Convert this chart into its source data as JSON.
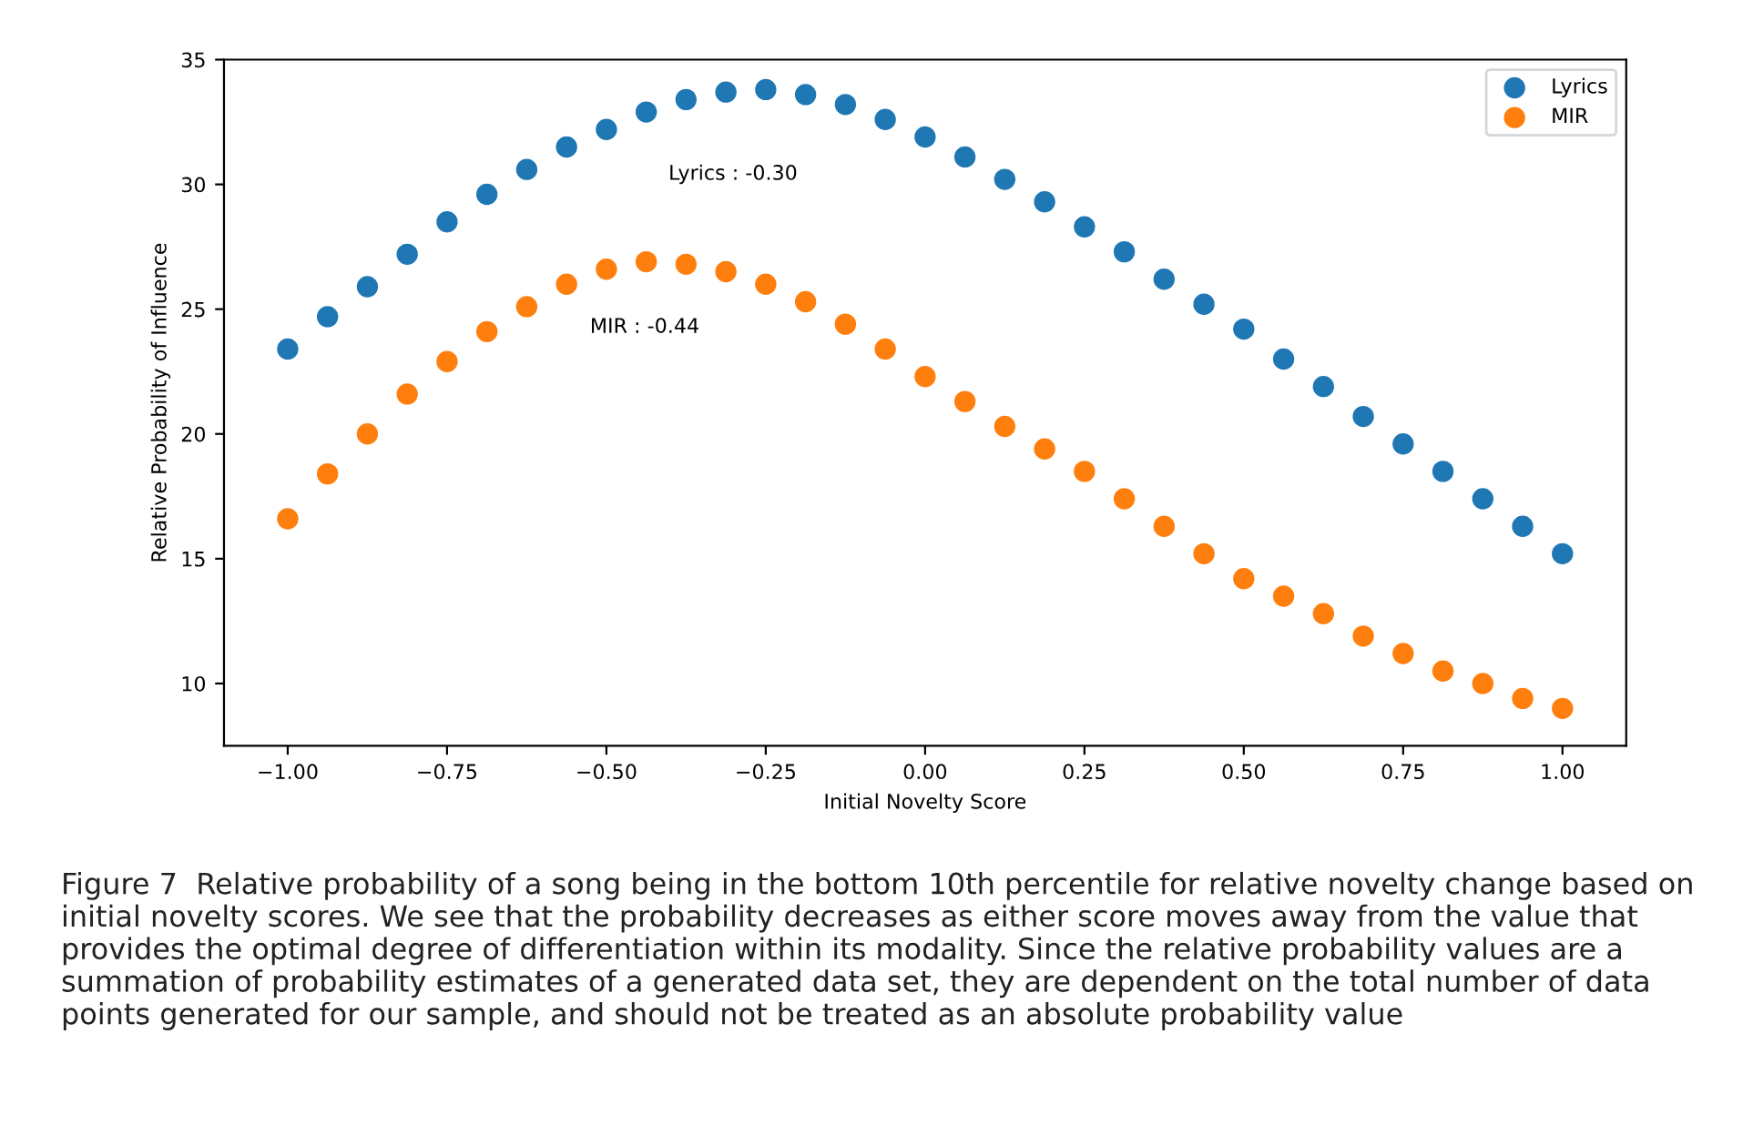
{
  "chart_data": {
    "type": "scatter",
    "xlabel": "Initial Novelty Score",
    "ylabel": "Relative Probability of Influence",
    "xlim": [
      -1.1,
      1.1
    ],
    "ylim": [
      7.5,
      35
    ],
    "xticks": [
      {
        "value": -1,
        "label": "−1.00"
      },
      {
        "value": -0.75,
        "label": "−0.75"
      },
      {
        "value": -0.5,
        "label": "−0.50"
      },
      {
        "value": -0.25,
        "label": "−0.25"
      },
      {
        "value": 0,
        "label": "0.00"
      },
      {
        "value": 0.25,
        "label": "0.25"
      },
      {
        "value": 0.5,
        "label": "0.50"
      },
      {
        "value": 0.75,
        "label": "0.75"
      },
      {
        "value": 1,
        "label": "1.00"
      }
    ],
    "yticks": [
      10,
      15,
      20,
      25,
      30,
      35
    ],
    "grid": false,
    "legend": "top right",
    "marker": "circle",
    "series": [
      {
        "name": "Lyrics",
        "color": "#1f77b4",
        "x": [
          -1,
          -0.9375,
          -0.875,
          -0.8125,
          -0.75,
          -0.6875,
          -0.625,
          -0.5625,
          -0.5,
          -0.4375,
          -0.375,
          -0.3125,
          -0.25,
          -0.1875,
          -0.125,
          -0.0625,
          0,
          0.0625,
          0.125,
          0.1875,
          0.25,
          0.3125,
          0.375,
          0.4375,
          0.5,
          0.5625,
          0.625,
          0.6875,
          0.75,
          0.8125,
          0.875,
          0.9375,
          1
        ],
        "values": [
          23.4,
          24.7,
          25.9,
          27.2,
          28.5,
          29.6,
          30.6,
          31.5,
          32.2,
          32.9,
          33.4,
          33.7,
          33.8,
          33.6,
          33.2,
          32.6,
          31.9,
          31.1,
          30.2,
          29.3,
          28.3,
          27.3,
          26.2,
          25.2,
          24.2,
          23.0,
          21.9,
          20.7,
          19.6,
          18.5,
          17.4,
          16.3,
          15.2
        ]
      },
      {
        "name": "MIR",
        "color": "#ff7f0e",
        "x": [
          -1,
          -0.9375,
          -0.875,
          -0.8125,
          -0.75,
          -0.6875,
          -0.625,
          -0.5625,
          -0.5,
          -0.4375,
          -0.375,
          -0.3125,
          -0.25,
          -0.1875,
          -0.125,
          -0.0625,
          0,
          0.0625,
          0.125,
          0.1875,
          0.25,
          0.3125,
          0.375,
          0.4375,
          0.5,
          0.5625,
          0.625,
          0.6875,
          0.75,
          0.8125,
          0.875,
          0.9375,
          1
        ],
        "values": [
          16.6,
          18.4,
          20.0,
          21.6,
          22.9,
          24.1,
          25.1,
          26.0,
          26.6,
          26.9,
          26.8,
          26.5,
          26.0,
          25.3,
          24.4,
          23.4,
          22.3,
          21.3,
          20.3,
          19.4,
          18.5,
          17.4,
          16.3,
          15.2,
          14.2,
          13.5,
          12.8,
          11.9,
          11.2,
          10.5,
          10.0,
          9.4,
          9.0
        ]
      }
    ],
    "annotations": [
      "Lyrics : -0.30",
      "MIR : -0.44",
      "Figure 7  Relative probability of a song being in the bottom 10th percentile for relative novelty change based on initial novelty scores. We see that the probability decreases as either score moves away from the value that provides the optimal degree of differentiation within its modality. Since the relative probability values are a summation of probability estimates of a generated data set, they are dependent on the total number of data points generated for our sample, and should not be treated as an absolute probability value"
    ]
  }
}
